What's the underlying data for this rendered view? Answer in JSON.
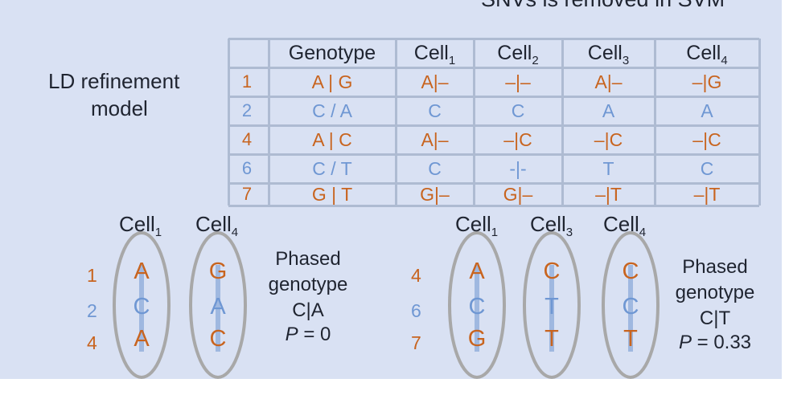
{
  "header": {
    "partial_caption": "SNVs is removed in SVM"
  },
  "model_label": {
    "line1": "LD refinement",
    "line2": "model"
  },
  "table": {
    "columns": [
      {
        "base": "Genotype",
        "sub": ""
      },
      {
        "base": "Cell",
        "sub": "1"
      },
      {
        "base": "Cell",
        "sub": "2"
      },
      {
        "base": "Cell",
        "sub": "3"
      },
      {
        "base": "Cell",
        "sub": "4"
      }
    ],
    "rows": [
      {
        "label": "1",
        "tone": "orange",
        "cells": [
          "A | G",
          "A|–",
          "–|–",
          "A|–",
          "–|G"
        ]
      },
      {
        "label": "2",
        "tone": "blue",
        "cells": [
          "C / A",
          "C",
          "C",
          "A",
          "A"
        ]
      },
      {
        "label": "4",
        "tone": "orange",
        "cells": [
          "A | C",
          "A|–",
          "–|C",
          "–|C",
          "–|C"
        ]
      },
      {
        "label": "6",
        "tone": "blue",
        "cells": [
          "C / T",
          "C",
          "-|-",
          "T",
          "C"
        ]
      },
      {
        "label": "7",
        "tone": "orange",
        "cells": [
          "G | T",
          "G|–",
          "G|–",
          "–|T",
          "–|T"
        ]
      }
    ]
  },
  "left_group": {
    "cells": [
      {
        "base": "Cell",
        "sub": "1"
      },
      {
        "base": "Cell",
        "sub": "4"
      }
    ],
    "snp_labels": [
      "1",
      "2",
      "4"
    ],
    "snp_tones": [
      "orange",
      "blue",
      "orange"
    ],
    "columns": [
      [
        "A",
        "C",
        "A"
      ],
      [
        "G",
        "A",
        "C"
      ]
    ],
    "phased": {
      "line1": "Phased",
      "line2": "genotype",
      "genotype": "C|A",
      "p": "P = 0"
    }
  },
  "right_group": {
    "cells": [
      {
        "base": "Cell",
        "sub": "1"
      },
      {
        "base": "Cell",
        "sub": "3"
      },
      {
        "base": "Cell",
        "sub": "4"
      }
    ],
    "snp_labels": [
      "4",
      "6",
      "7"
    ],
    "snp_tones": [
      "orange",
      "blue",
      "orange"
    ],
    "columns": [
      [
        "A",
        "C",
        "G"
      ],
      [
        "C",
        "T",
        "T"
      ],
      [
        "C",
        "C",
        "T"
      ]
    ],
    "phased": {
      "line1": "Phased",
      "line2": "genotype",
      "genotype": "C|T",
      "p": "P = 0.33"
    }
  },
  "colors": {
    "orange": "#c8641f",
    "blue": "#6f97d3",
    "panel": "#d9e1f3",
    "grid": "#aebbd2",
    "ellipse": "#a8a8a8"
  }
}
